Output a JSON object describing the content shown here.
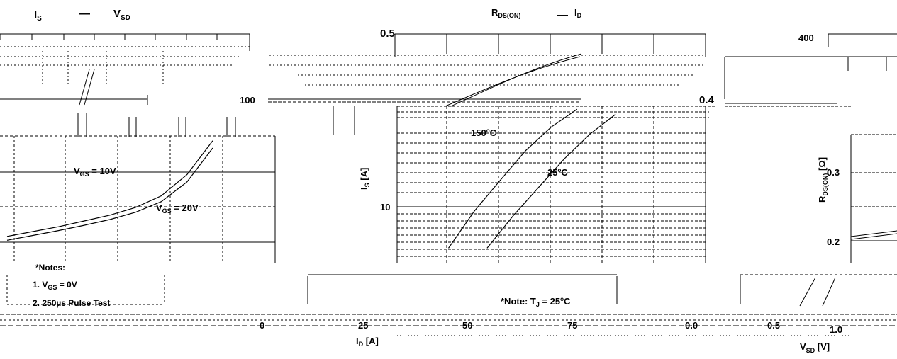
{
  "titles": {
    "left_is": "I",
    "left_is_sub": "S",
    "left_dash": "—",
    "left_vsd": "V",
    "left_vsd_sub": "SD",
    "right_rds": "R",
    "right_rds_sub": "DS(ON)",
    "right_dash": "—",
    "right_id": "I",
    "right_id_sub": "D"
  },
  "notes": {
    "left_heading": "*Notes:",
    "left_1": "1. V",
    "left_1_sub": "GS",
    "left_1_tail": " = 0V",
    "left_2": "2. 250µs Pulse Test",
    "center": "*Note: T",
    "center_sub": "J",
    "center_tail": " = 25",
    "center_deg": "o",
    "center_c": "C"
  },
  "chart_data": [
    {
      "type": "line",
      "title": "R_DS(ON) — I_D",
      "xlabel": "I_D [A]",
      "ylabel": "R_DS(ON) [Ω]",
      "xticks": [
        "0",
        "25",
        "50",
        "75"
      ],
      "yticks": [
        "0.5",
        "0.4",
        "0.3",
        "0.2"
      ],
      "ylim": [
        0.2,
        0.5
      ],
      "series": [
        {
          "name": "V_GS = 10V",
          "x": [
            0,
            10,
            20,
            30,
            40,
            50,
            60,
            70,
            80
          ],
          "y": [
            0.212,
            0.222,
            0.232,
            0.244,
            0.256,
            0.272,
            0.296,
            0.34,
            0.41
          ]
        },
        {
          "name": "V_GS = 20V",
          "x": [
            0,
            10,
            20,
            30,
            40,
            50,
            60,
            70,
            80
          ],
          "y": [
            0.204,
            0.214,
            0.224,
            0.235,
            0.247,
            0.262,
            0.284,
            0.325,
            0.395
          ]
        }
      ],
      "annotations": [
        "V_GS = 10V",
        "V_GS = 20V"
      ],
      "grid": true
    },
    {
      "type": "line",
      "title": "I_S — V_SD",
      "xlabel": "V_SD [V]",
      "ylabel": "I_S [A]",
      "xticks": [
        "0.0",
        "0.5",
        "1.0"
      ],
      "yticks": [
        "100",
        "10"
      ],
      "yscale": "log",
      "series": [
        {
          "name": "150°C",
          "x": [
            0.2,
            0.3,
            0.4,
            0.5,
            0.6,
            0.7
          ],
          "y": [
            3,
            8,
            18,
            40,
            75,
            120
          ]
        },
        {
          "name": "25°C",
          "x": [
            0.35,
            0.45,
            0.55,
            0.65,
            0.75,
            0.85
          ],
          "y": [
            3,
            7,
            15,
            32,
            62,
            105
          ]
        }
      ],
      "annotations": [
        "150°C",
        "25°C"
      ],
      "grid": true
    },
    {
      "type": "line",
      "title": "",
      "xlabel": "",
      "ylabel": "",
      "yticks": [
        "400"
      ],
      "grid": true
    }
  ],
  "labels": {
    "tick_100": "100",
    "tick_10": "10",
    "tick_05": "0.5",
    "tick_04": "0.4",
    "tick_03": "0.3",
    "tick_02": "0.2",
    "tick_400": "400",
    "x0": "0",
    "x25": "25",
    "x50": "50",
    "x75": "75",
    "v00": "0.0",
    "v05": "0.5",
    "v10": "1.0",
    "is_axis": "I",
    "is_axis_sub": "S",
    "is_axis_unit": " [A]",
    "rds_axis": "R",
    "rds_axis_sub": "DS(ON)",
    "rds_axis_unit": " [Ω]",
    "id_axis": "I",
    "id_axis_sub": "D",
    "id_axis_unit": " [A]",
    "vsd_axis": "V",
    "vsd_axis_sub": "SD",
    "vsd_axis_unit": " [V]",
    "vgs10": "V",
    "vgs10_sub": "GS",
    "vgs10_tail": " = 10V",
    "vgs20": "V",
    "vgs20_sub": "GS",
    "vgs20_tail": " = 20V",
    "t150": "150",
    "t150_deg": "o",
    "t150_c": "C",
    "t25": "25",
    "t25_deg": "o",
    "t25_c": "C"
  }
}
